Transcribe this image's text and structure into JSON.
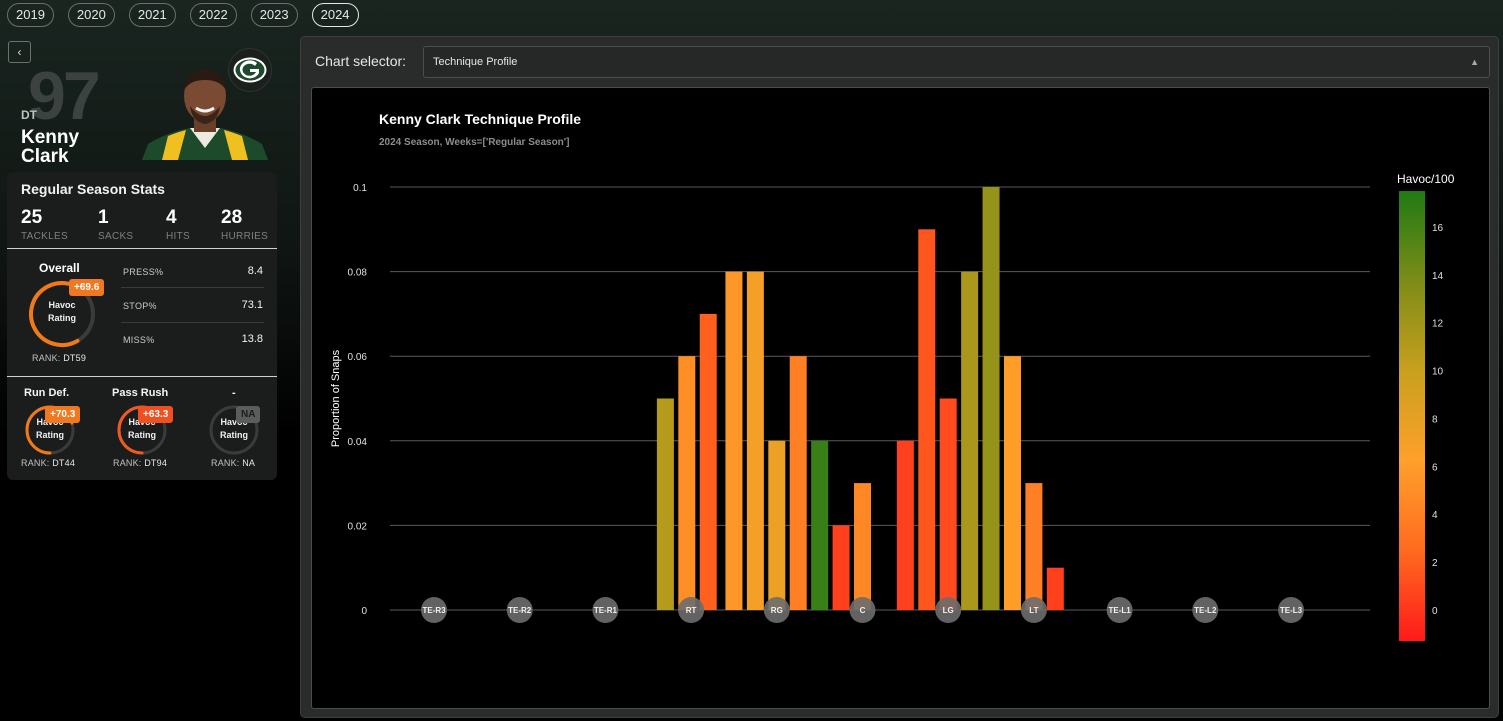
{
  "years": [
    "2019",
    "2020",
    "2021",
    "2022",
    "2023",
    "2024"
  ],
  "active_year": "2024",
  "player": {
    "number": "97",
    "position": "DT",
    "first_name": "Kenny",
    "last_name": "Clark"
  },
  "stats": {
    "title": "Regular Season Stats",
    "items": [
      {
        "value": "25",
        "label": "TACKLES"
      },
      {
        "value": "1",
        "label": "SACKS"
      },
      {
        "value": "4",
        "label": "HITS"
      },
      {
        "value": "28",
        "label": "HURRIES"
      }
    ],
    "overall": {
      "label": "Overall",
      "delta": "+69.6",
      "ring_label_1": "Havoc",
      "ring_label_2": "Rating",
      "rank_label": "RANK:",
      "rank": "DT59",
      "ring_fill": 0.69
    },
    "metrics": [
      {
        "key": "PRESS%",
        "value": "8.4"
      },
      {
        "key": "STOP%",
        "value": "73.1"
      },
      {
        "key": "MISS%",
        "value": "13.8"
      }
    ],
    "sub": [
      {
        "title": "Run Def.",
        "delta": "+70.3",
        "rank_label": "RANK:",
        "rank": "DT44",
        "ring_label_1": "Havoc",
        "ring_label_2": "Rating",
        "badge_color": "#f07820",
        "ring_fill": 0.7
      },
      {
        "title": "Pass Rush",
        "delta": "+63.3",
        "rank_label": "RANK:",
        "rank": "DT94",
        "ring_label_1": "Havoc",
        "ring_label_2": "Rating",
        "badge_color": "#f05020",
        "ring_fill": 0.63
      },
      {
        "title": "-",
        "delta": "NA",
        "rank_label": "RANK:",
        "rank": "NA",
        "ring_label_1": "Havoc",
        "ring_label_2": "Rating",
        "badge_color": "#5a5d5b",
        "ring_fill": 0
      }
    ]
  },
  "chart_selector": {
    "label": "Chart selector:",
    "value": "Technique Profile"
  },
  "chart_data": {
    "type": "bar",
    "title": "Kenny Clark Technique Profile",
    "subtitle": "2024 Season, Weeks=['Regular Season']",
    "ylabel": "Proportion of Snaps",
    "ylim": [
      0,
      0.1
    ],
    "yticks": [
      "0",
      "0.02",
      "0.04",
      "0.06",
      "0.08",
      "0.1"
    ],
    "ytick_values": [
      0,
      0.02,
      0.04,
      0.06,
      0.08,
      0.1
    ],
    "positions": [
      "TE-R3",
      "TE-R2",
      "TE-R1",
      "RT",
      "RG",
      "C",
      "LG",
      "LT",
      "TE-L1",
      "TE-L2",
      "TE-L3"
    ],
    "x_unit": "alignment index (TE-R3 = 0 … TE-L3 = 10)",
    "bars": [
      {
        "x": 2.7,
        "value": 0.05,
        "havoc": 11
      },
      {
        "x": 2.95,
        "value": 0.06,
        "havoc": 5
      },
      {
        "x": 3.2,
        "value": 0.07,
        "havoc": 2
      },
      {
        "x": 3.5,
        "value": 0.08,
        "havoc": 5.5
      },
      {
        "x": 3.75,
        "value": 0.08,
        "havoc": 7
      },
      {
        "x": 4.0,
        "value": 0.04,
        "havoc": 7.5
      },
      {
        "x": 4.25,
        "value": 0.06,
        "havoc": 4
      },
      {
        "x": 4.5,
        "value": 0.04,
        "havoc": 16.5
      },
      {
        "x": 4.75,
        "value": 0.02,
        "havoc": 0.5
      },
      {
        "x": 5.0,
        "value": 0.03,
        "havoc": 4.5
      },
      {
        "x": 5.5,
        "value": 0.04,
        "havoc": 0.5
      },
      {
        "x": 5.75,
        "value": 0.09,
        "havoc": 1.5
      },
      {
        "x": 6.0,
        "value": 0.05,
        "havoc": 1
      },
      {
        "x": 6.25,
        "value": 0.08,
        "havoc": 11.5
      },
      {
        "x": 6.5,
        "value": 0.1,
        "havoc": 12.5
      },
      {
        "x": 6.75,
        "value": 0.06,
        "havoc": 6
      },
      {
        "x": 7.0,
        "value": 0.03,
        "havoc": 4
      },
      {
        "x": 7.25,
        "value": 0.01,
        "havoc": 0.5
      }
    ],
    "colorbar": {
      "title": "Havoc/100",
      "ticks": [
        "0",
        "2",
        "4",
        "6",
        "8",
        "10",
        "12",
        "14",
        "16"
      ],
      "tick_values": [
        0,
        2,
        4,
        6,
        8,
        10,
        12,
        14,
        16
      ],
      "range": [
        -1.3,
        17.5
      ],
      "colors": [
        "#ff1a1a",
        "#ff6a1f",
        "#ffa02a",
        "#c9a01e",
        "#7c8c18",
        "#1f7a14"
      ]
    }
  }
}
